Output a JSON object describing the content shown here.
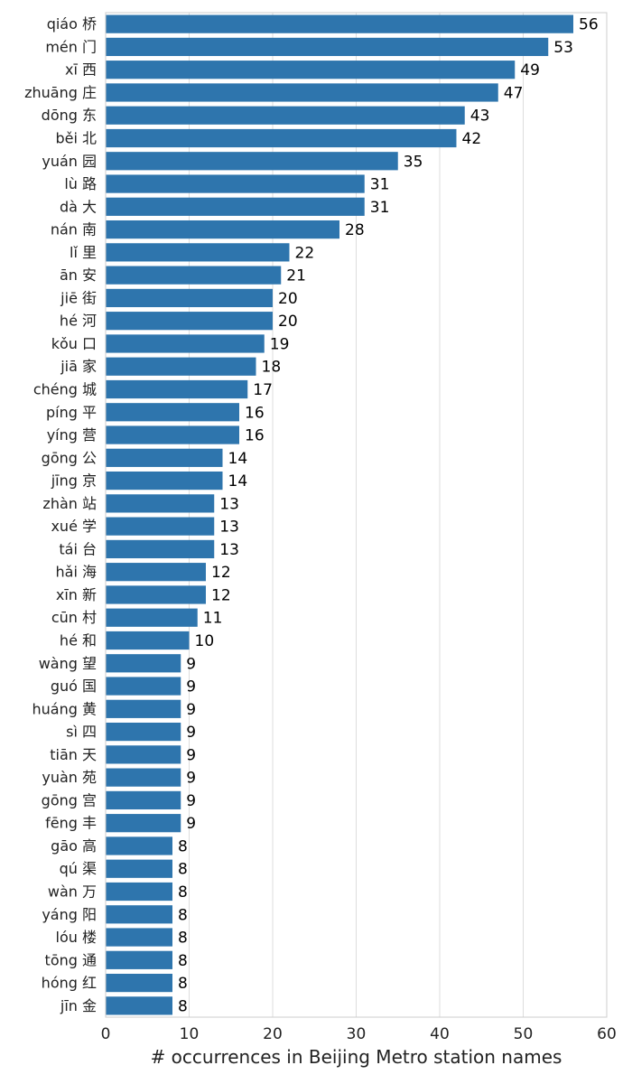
{
  "chart_data": {
    "type": "bar",
    "orientation": "horizontal",
    "categories": [
      "qiáo 桥",
      "mén 门",
      "xī 西",
      "zhuāng 庄",
      "dōng 东",
      "běi 北",
      "yuán 园",
      "lù 路",
      "dà 大",
      "nán 南",
      "lǐ 里",
      "ān 安",
      "jiē 街",
      "hé 河",
      "kǒu 口",
      "jiā 家",
      "chéng 城",
      "píng 平",
      "yíng 营",
      "gōng 公",
      "jīng 京",
      "zhàn 站",
      "xué 学",
      "tái 台",
      "hǎi 海",
      "xīn 新",
      "cūn 村",
      "hé 和",
      "wàng 望",
      "guó 国",
      "huáng 黄",
      "sì 四",
      "tiān 天",
      "yuàn 苑",
      "gōng 宫",
      "fēng 丰",
      "gāo 高",
      "qú 渠",
      "wàn 万",
      "yáng 阳",
      "lóu 楼",
      "tōng 通",
      "hóng 红",
      "jīn 金"
    ],
    "values": [
      56,
      53,
      49,
      47,
      43,
      42,
      35,
      31,
      31,
      28,
      22,
      21,
      20,
      20,
      19,
      18,
      17,
      16,
      16,
      14,
      14,
      13,
      13,
      13,
      12,
      12,
      11,
      10,
      9,
      9,
      9,
      9,
      9,
      9,
      9,
      9,
      8,
      8,
      8,
      8,
      8,
      8,
      8,
      8
    ],
    "xlabel": "# occurrences in Beijing Metro station names",
    "ylabel": "",
    "xlim": [
      0,
      60
    ],
    "xticks": [
      0,
      10,
      20,
      30,
      40,
      50,
      60
    ],
    "grid": "vertical",
    "bar_color": "#2e75ad",
    "data_labels": true
  }
}
